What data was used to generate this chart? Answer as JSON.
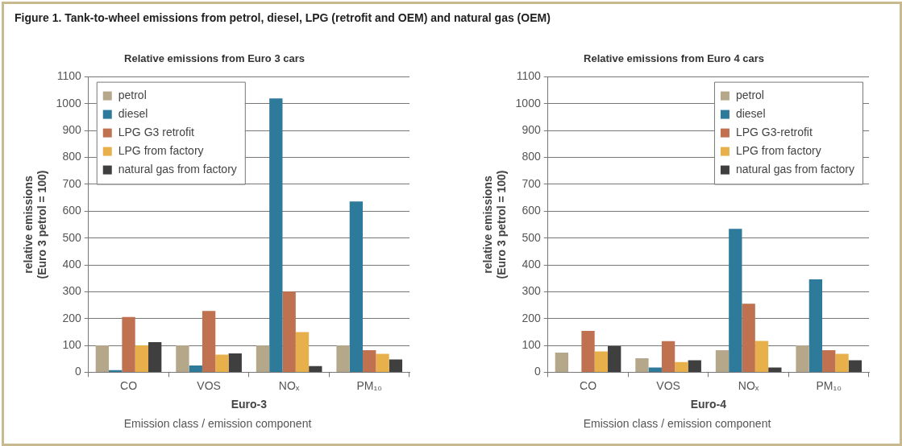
{
  "chart_data": [
    {
      "type": "bar",
      "title": "Relative emissions from Euro 3 cars",
      "xlabel": "Euro-3",
      "ylabel": "relative emissions\n(Euro 3 petrol = 100)",
      "categories": [
        "CO",
        "VOS",
        "NOₓ",
        "PM₁₀"
      ],
      "series": [
        {
          "name": "petrol",
          "color": "#b5a78a",
          "values": [
            100,
            100,
            100,
            100
          ]
        },
        {
          "name": "diesel",
          "color": "#2e7a9a",
          "values": [
            8,
            25,
            1020,
            636
          ]
        },
        {
          "name": "LPG G3 retrofit",
          "color": "#c0714f",
          "values": [
            206,
            228,
            300,
            82
          ]
        },
        {
          "name": "LPG from factory",
          "color": "#e8b04a",
          "values": [
            100,
            66,
            150,
            69
          ]
        },
        {
          "name": "natural gas from factory",
          "color": "#3f3f3f",
          "values": [
            112,
            70,
            23,
            48
          ]
        }
      ],
      "ylim": [
        0,
        1100
      ],
      "yticks": [
        0,
        100,
        200,
        300,
        400,
        500,
        600,
        700,
        800,
        900,
        1000,
        1100
      ],
      "grid": "y",
      "legend": "top left",
      "annotations": [
        "Figure 1. Tank-to-wheel emissions from petrol, diesel, LPG (retrofit and OEM) and natural gas (OEM)",
        "Emission class / emission component"
      ]
    },
    {
      "type": "bar",
      "title": "Relative emissions from Euro 4 cars",
      "xlabel": "Euro-4",
      "ylabel": "relative emissions\n(Euro 3 petrol = 100)",
      "categories": [
        "CO",
        "VOS",
        "NOₓ",
        "PM₁₀"
      ],
      "series": [
        {
          "name": "petrol",
          "color": "#b5a78a",
          "values": [
            73,
            52,
            82,
            100
          ]
        },
        {
          "name": "diesel",
          "color": "#2e7a9a",
          "values": [
            1,
            18,
            534,
            346
          ]
        },
        {
          "name": "LPG G3-retrofit",
          "color": "#c0714f",
          "values": [
            154,
            116,
            255,
            82
          ]
        },
        {
          "name": "LPG from factory",
          "color": "#e8b04a",
          "values": [
            78,
            38,
            117,
            69
          ]
        },
        {
          "name": "natural gas from factory",
          "color": "#3f3f3f",
          "values": [
            97,
            45,
            18,
            45
          ]
        }
      ],
      "ylim": [
        0,
        1100
      ],
      "yticks": [
        0,
        100,
        200,
        300,
        400,
        500,
        600,
        700,
        800,
        900,
        1000,
        1100
      ],
      "grid": "y",
      "legend": "top right",
      "annotations": [
        "Emission class / emission component"
      ]
    }
  ]
}
